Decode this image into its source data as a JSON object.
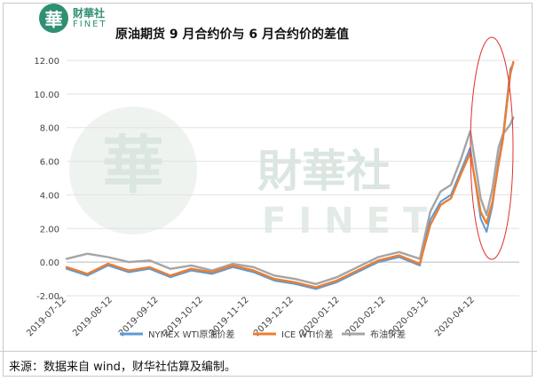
{
  "header": {
    "logo_mark": "華",
    "logo_cn": "财華社",
    "logo_en": "FINET",
    "title": "原油期货 9 月合约价与 6 月合约价的差值"
  },
  "watermark": {
    "mark": "華",
    "cn": "財華社",
    "en": "FINET"
  },
  "footer": {
    "source": "来源：数据来自 wind，财华社估算及编制。"
  },
  "colors": {
    "nymex": "#5b9bd5",
    "ice": "#ed7d31",
    "brent": "#a5a5a5",
    "highlight_ellipse": "#e03030"
  },
  "chart_data": {
    "type": "line",
    "title": "原油期货 9 月合约价与 6 月合约价的差值",
    "ylim": [
      -2,
      12
    ],
    "yticks": [
      "-2.00",
      "0.00",
      "2.00",
      "4.00",
      "6.00",
      "8.00",
      "10.00",
      "12.00"
    ],
    "xlim": [
      "2019-07-12",
      "2020-05-12"
    ],
    "xticks": [
      "2019-07-12",
      "2019-08-12",
      "2019-09-12",
      "2019-10-12",
      "2019-11-12",
      "2019-12-12",
      "2020-01-12",
      "2020-02-12",
      "2020-03-12",
      "2020-04-12"
    ],
    "x": [
      "2019-07-12",
      "2019-07-26",
      "2019-08-09",
      "2019-08-23",
      "2019-09-06",
      "2019-09-20",
      "2019-10-04",
      "2019-10-18",
      "2019-11-01",
      "2019-11-15",
      "2019-11-29",
      "2019-12-13",
      "2019-12-27",
      "2020-01-10",
      "2020-01-24",
      "2020-02-07",
      "2020-02-21",
      "2020-03-06",
      "2020-03-13",
      "2020-03-20",
      "2020-03-27",
      "2020-04-03",
      "2020-04-09",
      "2020-04-16",
      "2020-04-20",
      "2020-04-24",
      "2020-04-28",
      "2020-05-01",
      "2020-05-06",
      "2020-05-08"
    ],
    "series": [
      {
        "name": "NYMEX WTI原油价差",
        "values": [
          -0.4,
          -0.8,
          -0.2,
          -0.6,
          -0.4,
          -0.9,
          -0.5,
          -0.7,
          -0.3,
          -0.6,
          -1.1,
          -1.3,
          -1.6,
          -1.2,
          -0.6,
          0.0,
          0.3,
          -0.2,
          2.5,
          3.6,
          4.0,
          5.5,
          6.8,
          2.6,
          1.8,
          3.4,
          6.0,
          7.5,
          11.5,
          11.8
        ]
      },
      {
        "name": "ICE WTI价差",
        "values": [
          -0.3,
          -0.7,
          -0.1,
          -0.5,
          -0.3,
          -0.8,
          -0.4,
          -0.6,
          -0.2,
          -0.5,
          -1.0,
          -1.2,
          -1.5,
          -1.1,
          -0.5,
          0.1,
          0.4,
          -0.1,
          2.2,
          3.4,
          3.8,
          5.3,
          6.5,
          3.0,
          2.3,
          3.6,
          5.8,
          7.3,
          11.2,
          11.9
        ]
      },
      {
        "name": "布油价差",
        "values": [
          0.2,
          0.5,
          0.3,
          0.0,
          0.1,
          -0.4,
          -0.2,
          -0.5,
          -0.1,
          -0.3,
          -0.8,
          -1.0,
          -1.3,
          -0.9,
          -0.3,
          0.3,
          0.6,
          0.2,
          3.0,
          4.2,
          4.6,
          6.2,
          7.8,
          3.8,
          2.8,
          4.4,
          6.8,
          7.6,
          8.2,
          8.6
        ]
      }
    ],
    "legend_position": "bottom",
    "grid": true
  }
}
